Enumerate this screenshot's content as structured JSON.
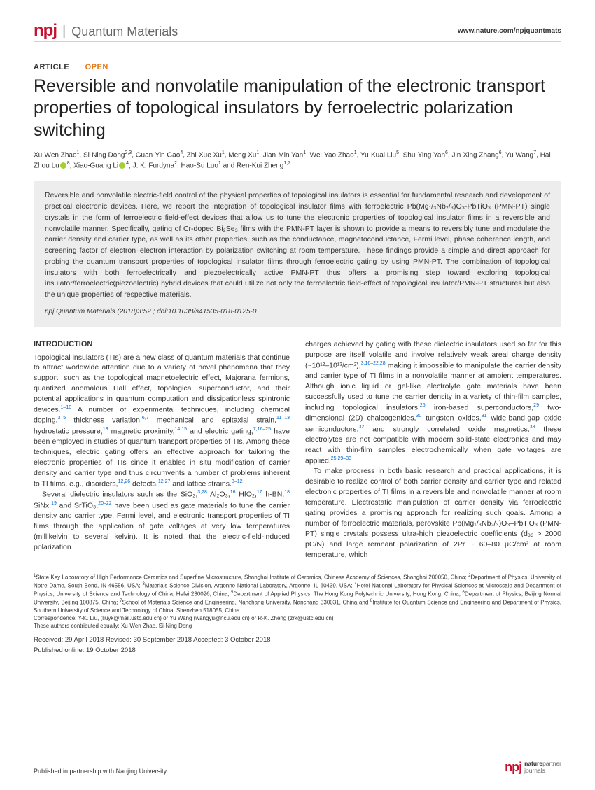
{
  "header": {
    "brand_logo": "npj",
    "brand_name": "Quantum Materials",
    "website": "www.nature.com/npjquantmats"
  },
  "labels": {
    "article": "ARTICLE",
    "open": "OPEN"
  },
  "title": "Reversible and nonvolatile manipulation of the electronic transport properties of topological insulators by ferroelectric polarization switching",
  "authors_html": "Xu-Wen Zhao<sup>1</sup>, Si-Ning Dong<sup>2,3</sup>, Guan-Yin Gao<sup>4</sup>, Zhi-Xue Xu<sup>1</sup>, Meng Xu<sup>1</sup>, Jian-Min Yan<sup>1</sup>, Wei-Yao Zhao<sup>1</sup>, Yu-Kuai Liu<sup>5</sup>, Shu-Ying Yan<sup>6</sup>, Jin-Xing Zhang<sup>6</sup>, Yu Wang<sup>7</sup>, Hai-Zhou Lu<span class='orcid'></span><sup>8</sup>, Xiao-Guang Li<span class='orcid'></span><sup>4</sup>, J. K. Furdyna<sup>2</sup>, Hao-Su Luo<sup>1</sup> and Ren-Kui Zheng<sup>1,7</sup>",
  "abstract": "Reversible and nonvolatile electric-field control of the physical properties of topological insulators is essential for fundamental research and development of practical electronic devices. Here, we report the integration of topological insulator films with ferroelectric Pb(Mg₁/₃Nb₂/₃)O₃-PbTiO₃ (PMN-PT) single crystals in the form of ferroelectric field-effect devices that allow us to tune the electronic properties of topological insulator films in a reversible and nonvolatile manner. Specifically, gating of Cr-doped Bi₂Se₃ films with the PMN-PT layer is shown to provide a means to reversibly tune and modulate the carrier density and carrier type, as well as its other properties, such as the conductance, magnetoconductance, Fermi level, phase coherence length, and screening factor of electron–electron interaction by polarization switching at room temperature. These findings provide a simple and direct approach for probing the quantum transport properties of topological insulator films through ferroelectric gating by using PMN-PT. The combination of topological insulators with both ferroelectrically and piezoelectrically active PMN-PT thus offers a promising step toward exploring topological insulator/ferroelectric(piezoelectric) hybrid devices that could utilize not only the ferroelectric field-effect of topological insulator/PMN-PT structures but also the unique properties of respective materials.",
  "citation": "npj Quantum Materials (2018)3:52 ; doi:10.1038/s41535-018-0125-0",
  "intro_head": "INTRODUCTION",
  "col1_p1": "Topological insulators (TIs) are a new class of quantum materials that continue to attract worldwide attention due to a variety of novel phenomena that they support, such as the topological magnetoelectric effect, Majorana fermions, quantized anomalous Hall effect, topological superconductor, and their potential applications in quantum computation and dissipationless spintronic devices.<sup>1–10</sup> A number of experimental techniques, including chemical doping,<sup>3–5</sup> thickness variation,<sup>6,7</sup> mechanical and epitaxial strain,<sup>11–13</sup> hydrostatic pressure,<sup>13</sup> magnetic proximity,<sup>14,15</sup> and electric gating,<sup>7,16–25</sup> have been employed in studies of quantum transport properties of TIs. Among these techniques, electric gating offers an effective approach for tailoring the electronic properties of TIs since it enables in situ modification of carrier density and carrier type and thus circumvents a number of problems inherent to TI films, e.g., disorders,<sup>12,26</sup> defects,<sup>12,27</sup> and lattice strains.<sup>8–12</sup>",
  "col1_p2": "Several dielectric insulators such as the SiO₂,<sup>3,28</sup> Al₂O₃,<sup>16</sup> HfO₂,<sup>17</sup> h-BN,<sup>18</sup> SiNx,<sup>19</sup> and SrTiO₃,<sup>20–22</sup> have been used as gate materials to tune the carrier density and carrier type, Fermi level, and electronic transport properties of TI films through the application of gate voltages at very low temperatures (millikelvin to several kelvin). It is noted that the electric-field-induced polarization",
  "col2_p1": "charges achieved by gating with these dielectric insulators used so far for this purpose are itself volatile and involve relatively weak areal charge density (~10¹²–10¹³/cm²),<sup>3,16–22,28</sup> making it impossible to manipulate the carrier density and carrier type of TI films in a nonvolatile manner at ambient temperatures. Although ionic liquid or gel-like electrolyte gate materials have been successfully used to tune the carrier density in a variety of thin-film samples, including topological insulators,<sup>25</sup> iron-based superconductors,<sup>29</sup> two-dimensional (2D) chalcogenides,<sup>30</sup> tungsten oxides,<sup>31</sup> wide-band-gap oxide semiconductors,<sup>32</sup> and strongly correlated oxide magnetics,<sup>33</sup> these electrolytes are not compatible with modern solid-state electronics and may react with thin-film samples electrochemically when gate voltages are applied.<sup>25,29–33</sup>",
  "col2_p2": "To make progress in both basic research and practical applications, it is desirable to realize control of both carrier density and carrier type and related electronic properties of TI films in a reversible and nonvolatile manner at room temperature. Electrostatic manipulation of carrier density via ferroelectric gating provides a promising approach for realizing such goals. Among a number of ferroelectric materials, perovskite Pb(Mg₁/₃Nb₂/₃)O₃–PbTiO₃ (PMN-PT) single crystals possess ultra-high piezoelectric coefficients (d₃₃ > 2000 pC/N) and large remnant polarization of 2Pr ~ 60–80 μC/cm² at room temperature, which",
  "affiliations": "<sup>1</sup>State Key Laboratory of High Performance Ceramics and Superfine Microstructure, Shanghai Institute of Ceramics, Chinese Academy of Sciences, Shanghai 200050, China; <sup>2</sup>Department of Physics, University of Notre Dame, South Bend, IN 46556, USA; <sup>3</sup>Materials Science Division, Argonne National Laboratory, Argonne, IL 60439, USA; <sup>4</sup>Hefei National Laboratory for Physical Sciences at Microscale and Department of Physics, University of Science and Technology of China, Hefei 230026, China; <sup>5</sup>Department of Applied Physics, The Hong Kong Polytechnic University, Hong Kong, China; <sup>6</sup>Department of Physics, Beijing Normal University, Beijing 100875, China; <sup>7</sup>School of Materials Science and Engineering, Nanchang University, Nanchang 330031, China and <sup>8</sup>Institute for Quantum Science and Engineering and Department of Physics, Southern University of Science and Technology of China, Shenzhen 518055, China",
  "correspondence": "Correspondence: Y-K. Liu, (liuyk@mail.ustc.edu.cn) or Yu Wang (wangyu@ncu.edu.cn) or R-K. Zheng (zrk@ustc.edu.cn)",
  "contrib": "These authors contributed equally: Xu-Wen Zhao, Si-Ning Dong",
  "dates": {
    "received": "Received: 29 April 2018 Revised: 30 September 2018 Accepted: 3 October 2018",
    "published": "Published online: 19 October 2018"
  },
  "footer": {
    "left": "Published in partnership with Nanjing University",
    "right_brand": "npj",
    "right_line1": "nature",
    "right_line1b": "partner",
    "right_line2": "journals"
  }
}
